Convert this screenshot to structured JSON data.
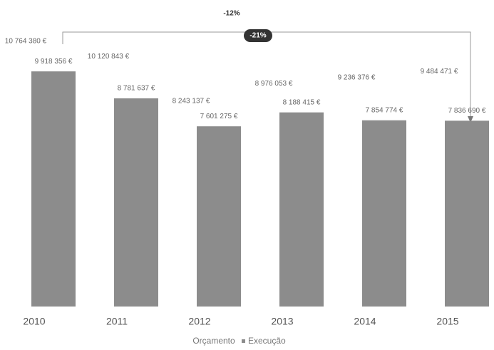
{
  "chart_data": {
    "type": "bar",
    "categories": [
      "2010",
      "2011",
      "2012",
      "2013",
      "2014",
      "2015"
    ],
    "series": [
      {
        "name": "Orçamento",
        "color": "#ffffff",
        "values": [
          10764380,
          10120843,
          8243137,
          8976053,
          9236376,
          9484471
        ],
        "value_labels": [
          "10 764 380 €",
          "10 120 843 €",
          "8 243 137 €",
          "8 976 053 €",
          "9 236 376 €",
          "9 484 471 €"
        ]
      },
      {
        "name": "Execução",
        "color": "#8c8c8c",
        "values": [
          9918356,
          8781637,
          7601275,
          8188415,
          7854774,
          7836690
        ],
        "value_labels": [
          "9 918 356 €",
          "8 781 637 €",
          "7 601 275 €",
          "8 188 415 €",
          "7 854 774 €",
          "7 836 690 €"
        ]
      }
    ],
    "annotations": [
      "-12%",
      "-21%"
    ]
  }
}
